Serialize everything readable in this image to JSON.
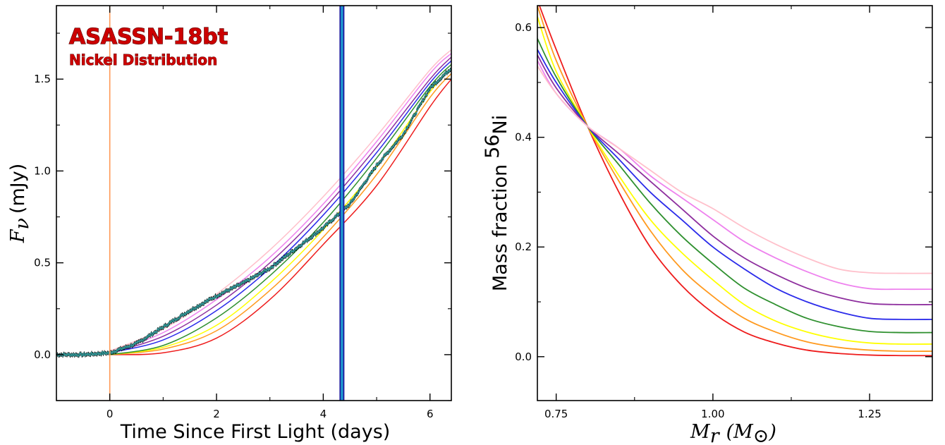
{
  "colors": {
    "models": [
      "#ee1c1c",
      "#ff9a1f",
      "#ffff00",
      "#2f902f",
      "#2b2bea",
      "#8e2f9e",
      "#ee82ee",
      "#ffc0cb"
    ],
    "data_points": "#2f8f8f",
    "first_light_line": "#ff9955",
    "vline_outer": "#1f1fa0",
    "vline_inner": "#1ea0d0"
  },
  "chart_data": [
    {
      "type": "line",
      "title": "ASASSN-18bt",
      "subtitle": "Nickel Distribution",
      "xlabel": "Time Since First Light (days)",
      "ylabel": "F_ν (mJy)",
      "ylabel_math": "F",
      "ylabel_sub": "ν",
      "ylabel_units": "(mJy)",
      "xlim": [
        -1,
        6.4
      ],
      "ylim": [
        -0.25,
        1.9
      ],
      "xticks": [
        0,
        2,
        4,
        6
      ],
      "xtick_labels": [
        "0",
        "2",
        "4",
        "6"
      ],
      "yticks": [
        0.0,
        0.5,
        1.0,
        1.5
      ],
      "ytick_labels": [
        "0.0",
        "0.5",
        "1.0",
        "1.5"
      ],
      "vertical_lines": [
        0,
        4.35
      ],
      "grid": false,
      "series": [
        {
          "color_index": 0,
          "x": [
            0,
            1,
            2,
            3,
            4,
            5,
            6,
            6.4
          ],
          "values": [
            0.0,
            0.01,
            0.09,
            0.3,
            0.6,
            0.92,
            1.35,
            1.5
          ]
        },
        {
          "color_index": 1,
          "x": [
            0,
            1,
            2,
            3,
            4,
            5,
            6,
            6.4
          ],
          "values": [
            0.0,
            0.03,
            0.13,
            0.35,
            0.64,
            0.98,
            1.4,
            1.53
          ]
        },
        {
          "color_index": 2,
          "x": [
            0,
            1,
            2,
            3,
            4,
            5,
            6,
            6.4
          ],
          "values": [
            0.0,
            0.04,
            0.16,
            0.39,
            0.68,
            1.02,
            1.43,
            1.56
          ]
        },
        {
          "color_index": 3,
          "x": [
            0,
            1,
            2,
            3,
            4,
            5,
            6,
            6.4
          ],
          "values": [
            0.0,
            0.05,
            0.2,
            0.43,
            0.72,
            1.07,
            1.46,
            1.58
          ]
        },
        {
          "color_index": 4,
          "x": [
            0,
            1,
            2,
            3,
            4,
            5,
            6,
            6.4
          ],
          "values": [
            0.01,
            0.08,
            0.24,
            0.47,
            0.76,
            1.1,
            1.48,
            1.6
          ]
        },
        {
          "color_index": 5,
          "x": [
            0,
            1,
            2,
            3,
            4,
            5,
            6,
            6.4
          ],
          "values": [
            0.01,
            0.1,
            0.27,
            0.5,
            0.79,
            1.13,
            1.5,
            1.62
          ]
        },
        {
          "color_index": 6,
          "x": [
            0,
            1,
            2,
            3,
            4,
            5,
            6,
            6.4
          ],
          "values": [
            0.01,
            0.12,
            0.3,
            0.53,
            0.82,
            1.16,
            1.53,
            1.64
          ]
        },
        {
          "color_index": 7,
          "x": [
            0,
            1,
            2,
            3,
            4,
            5,
            6,
            6.4
          ],
          "values": [
            0.02,
            0.14,
            0.33,
            0.57,
            0.86,
            1.19,
            1.55,
            1.66
          ]
        }
      ],
      "observations": {
        "x": [
          -1.0,
          -0.5,
          0.0,
          0.5,
          1.0,
          1.5,
          2.0,
          2.5,
          3.0,
          3.5,
          4.0,
          4.5,
          5.0,
          5.5,
          6.0,
          6.4
        ],
        "values": [
          0.0,
          0.0,
          0.01,
          0.06,
          0.15,
          0.24,
          0.32,
          0.39,
          0.47,
          0.58,
          0.69,
          0.82,
          1.03,
          1.2,
          1.45,
          1.56
        ]
      }
    },
    {
      "type": "line",
      "xlabel": "M_r (M_⊙)",
      "xlabel_math": "M",
      "xlabel_sub": "r",
      "xlabel_units_open": "(M",
      "xlabel_units_sub": "⊙",
      "xlabel_units_close": ")",
      "ylabel": "Mass fraction ⁵⁶Ni",
      "ylabel_text": "Mass fraction",
      "ylabel_sup": "56",
      "ylabel_elem": "Ni",
      "xlim": [
        0.72,
        1.35
      ],
      "ylim": [
        -0.08,
        0.64
      ],
      "xticks": [
        0.75,
        1.0,
        1.25
      ],
      "xtick_labels": [
        "0.75",
        "1.00",
        "1.25"
      ],
      "yticks": [
        0.0,
        0.2,
        0.4,
        0.6
      ],
      "ytick_labels": [
        "0.0",
        "0.2",
        "0.4",
        "0.6"
      ],
      "grid": false,
      "series": [
        {
          "color_index": 0,
          "x": [
            0.72,
            0.75,
            0.8,
            0.85,
            0.9,
            0.95,
            1.0,
            1.05,
            1.1,
            1.15,
            1.2,
            1.25,
            1.3,
            1.35
          ],
          "values": [
            0.65,
            0.56,
            0.42,
            0.3,
            0.2,
            0.13,
            0.08,
            0.045,
            0.025,
            0.012,
            0.006,
            0.003,
            0.002,
            0.002
          ]
        },
        {
          "color_index": 1,
          "x": [
            0.72,
            0.75,
            0.8,
            0.85,
            0.9,
            0.95,
            1.0,
            1.05,
            1.1,
            1.15,
            1.2,
            1.25,
            1.3,
            1.35
          ],
          "values": [
            0.64,
            0.54,
            0.42,
            0.32,
            0.23,
            0.16,
            0.11,
            0.07,
            0.045,
            0.027,
            0.017,
            0.012,
            0.01,
            0.01
          ]
        },
        {
          "color_index": 2,
          "x": [
            0.72,
            0.75,
            0.8,
            0.85,
            0.9,
            0.95,
            1.0,
            1.05,
            1.1,
            1.15,
            1.2,
            1.25,
            1.3,
            1.35
          ],
          "values": [
            0.62,
            0.52,
            0.42,
            0.33,
            0.25,
            0.19,
            0.14,
            0.095,
            0.065,
            0.045,
            0.032,
            0.025,
            0.023,
            0.023
          ]
        },
        {
          "color_index": 3,
          "x": [
            0.72,
            0.75,
            0.8,
            0.85,
            0.9,
            0.95,
            1.0,
            1.05,
            1.1,
            1.15,
            1.2,
            1.25,
            1.3,
            1.35
          ],
          "values": [
            0.58,
            0.51,
            0.42,
            0.35,
            0.28,
            0.22,
            0.17,
            0.125,
            0.095,
            0.07,
            0.055,
            0.046,
            0.044,
            0.044
          ]
        },
        {
          "color_index": 4,
          "x": [
            0.72,
            0.75,
            0.8,
            0.85,
            0.9,
            0.95,
            1.0,
            1.05,
            1.1,
            1.15,
            1.2,
            1.25,
            1.3,
            1.35
          ],
          "values": [
            0.56,
            0.5,
            0.42,
            0.36,
            0.3,
            0.25,
            0.2,
            0.16,
            0.125,
            0.1,
            0.082,
            0.07,
            0.068,
            0.068
          ]
        },
        {
          "color_index": 5,
          "x": [
            0.72,
            0.75,
            0.8,
            0.85,
            0.9,
            0.95,
            1.0,
            1.05,
            1.1,
            1.15,
            1.2,
            1.25,
            1.3,
            1.35
          ],
          "values": [
            0.55,
            0.49,
            0.42,
            0.37,
            0.32,
            0.27,
            0.22,
            0.18,
            0.15,
            0.125,
            0.108,
            0.097,
            0.095,
            0.095
          ]
        },
        {
          "color_index": 6,
          "x": [
            0.72,
            0.75,
            0.8,
            0.85,
            0.9,
            0.95,
            1.0,
            1.05,
            1.1,
            1.15,
            1.2,
            1.25,
            1.3,
            1.35
          ],
          "values": [
            0.54,
            0.48,
            0.42,
            0.38,
            0.33,
            0.29,
            0.25,
            0.21,
            0.18,
            0.155,
            0.135,
            0.124,
            0.123,
            0.123
          ]
        },
        {
          "color_index": 7,
          "x": [
            0.72,
            0.75,
            0.8,
            0.85,
            0.9,
            0.95,
            1.0,
            1.05,
            1.1,
            1.15,
            1.2,
            1.25,
            1.3,
            1.35
          ],
          "values": [
            0.53,
            0.48,
            0.42,
            0.38,
            0.34,
            0.3,
            0.27,
            0.235,
            0.205,
            0.18,
            0.16,
            0.153,
            0.152,
            0.152
          ]
        }
      ]
    }
  ]
}
